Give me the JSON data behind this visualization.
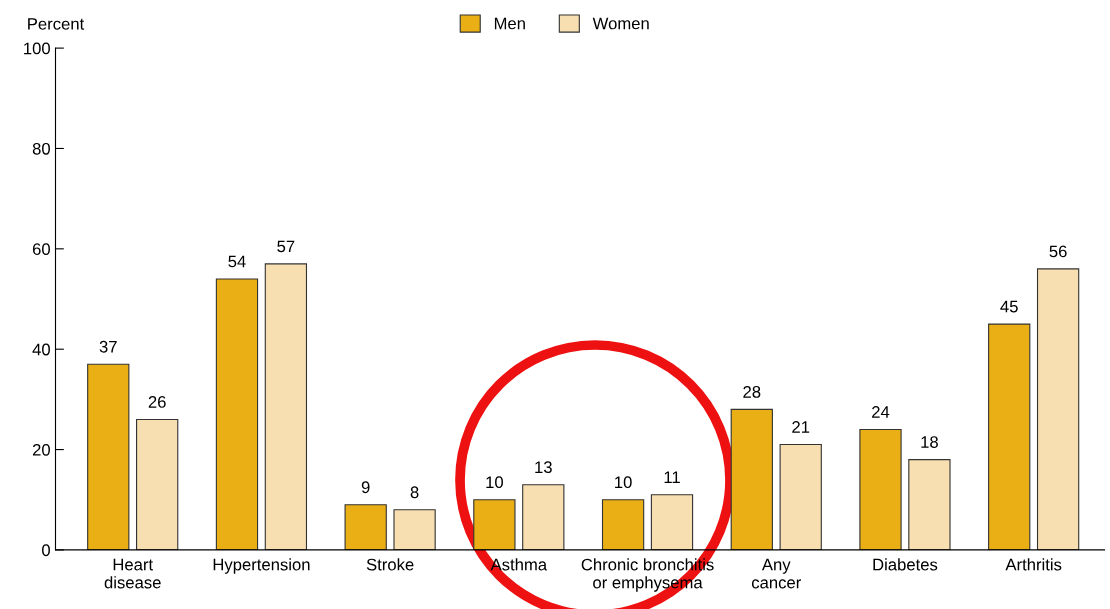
{
  "chart_data": {
    "type": "bar",
    "ylabel": "Percent",
    "categories": [
      "Heart\ndisease",
      "Hypertension",
      "Stroke",
      "Asthma",
      "Chronic bronchitis\nor emphysema",
      "Any\ncancer",
      "Diabetes",
      "Arthritis"
    ],
    "series": [
      {
        "name": "Men",
        "color": "#eaaf14",
        "values": [
          37,
          54,
          9,
          10,
          10,
          28,
          24,
          45
        ]
      },
      {
        "name": "Women",
        "color": "#f8dfb1",
        "values": [
          26,
          57,
          8,
          13,
          11,
          21,
          18,
          56
        ]
      }
    ],
    "ylim": [
      0,
      100
    ],
    "yticks": [
      0,
      20,
      40,
      60,
      80,
      100
    ],
    "data_labels": true,
    "legend": "top",
    "grid": false
  }
}
